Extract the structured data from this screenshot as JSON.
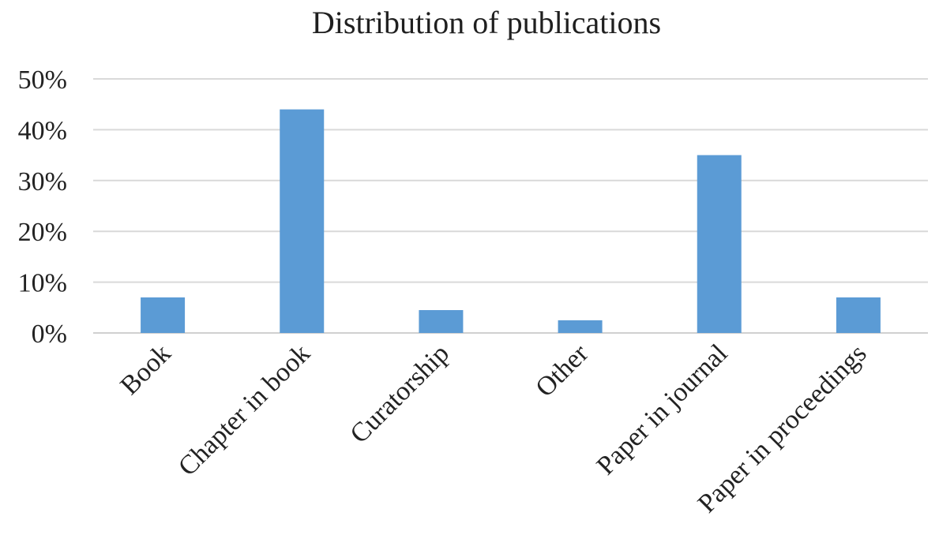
{
  "chart_data": {
    "type": "bar",
    "title": "Distribution of publications",
    "categories": [
      "Book",
      "Chapter in book",
      "Curatorship",
      "Other",
      "Paper in journal",
      "Paper in proceedings"
    ],
    "values": [
      7,
      44,
      4.5,
      2.5,
      35,
      7
    ],
    "value_unit": "%",
    "ylim": [
      0,
      50
    ],
    "yticks": [
      "0%",
      "10%",
      "20%",
      "30%",
      "40%",
      "50%"
    ],
    "ytick_values": [
      0,
      10,
      20,
      30,
      40,
      50
    ],
    "xlabel": "",
    "ylabel": "",
    "grid": true,
    "legend": "none",
    "bar_color": "#5b9bd5"
  }
}
